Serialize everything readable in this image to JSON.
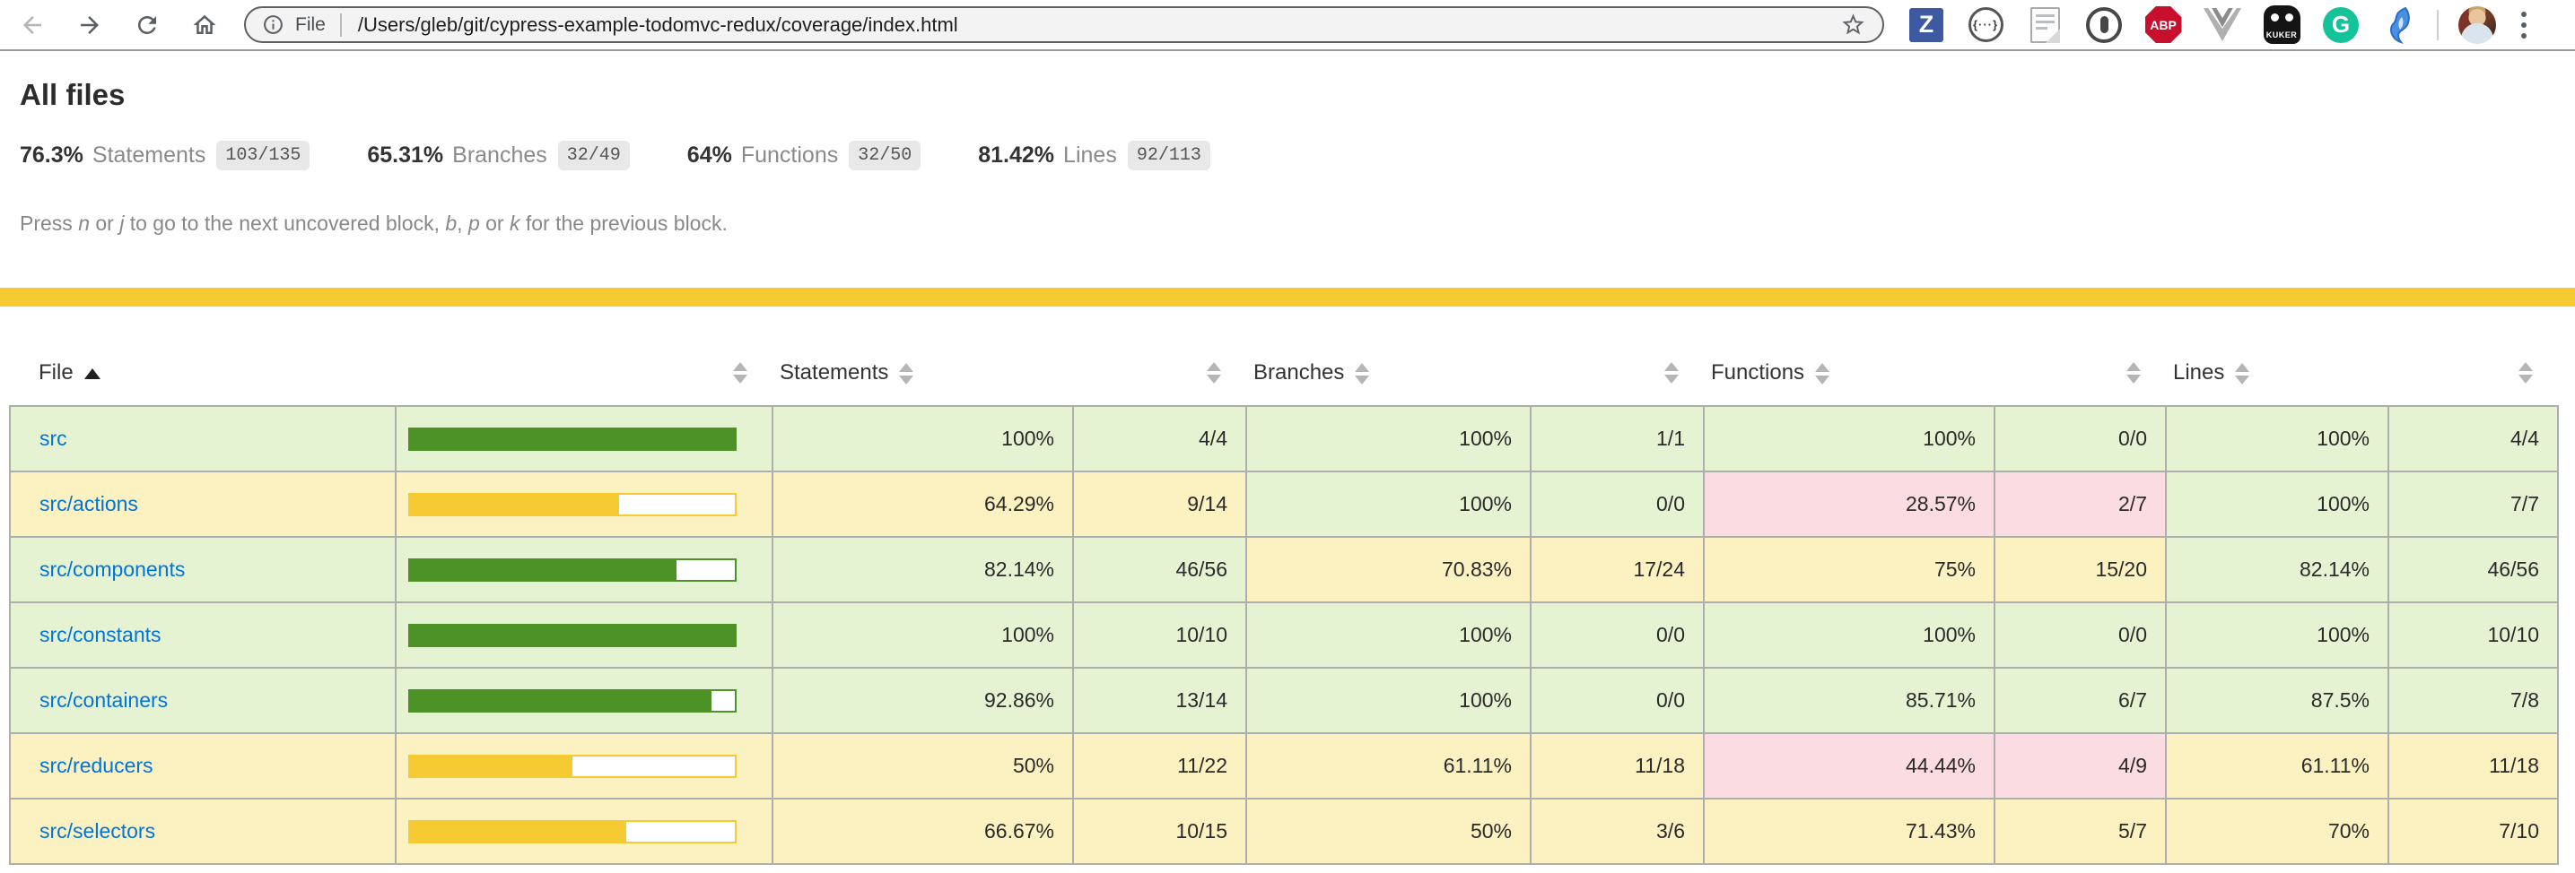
{
  "browser": {
    "address": {
      "scheme_label": "File",
      "path": "/Users/gleb/git/cypress-example-todomvc-redux/coverage/index.html"
    },
    "extensions": {
      "zotero": "Z",
      "json_viewer": "{···}",
      "adblock": "ABP",
      "kuker": "KUKER",
      "grammarly": "G"
    }
  },
  "page": {
    "title": "All files",
    "summary": [
      {
        "pct": "76.3%",
        "label": "Statements",
        "frac": "103/135"
      },
      {
        "pct": "65.31%",
        "label": "Branches",
        "frac": "32/49"
      },
      {
        "pct": "64%",
        "label": "Functions",
        "frac": "32/50"
      },
      {
        "pct": "81.42%",
        "label": "Lines",
        "frac": "92/113"
      }
    ],
    "hint": {
      "t1": "Press ",
      "k1": "n",
      "t2": " or ",
      "k2": "j",
      "t3": " to go to the next uncovered block, ",
      "k3": "b",
      "t4": ", ",
      "k4": "p",
      "t5": " or ",
      "k5": "k",
      "t6": " for the previous block."
    }
  },
  "colors": {
    "high_bg": "#e6f3d3",
    "medium_bg": "#fcf1c1",
    "low_bg": "#fbdce2",
    "green": "#4d9227",
    "yellow": "#f6ca32",
    "status_line": "#f6ca32",
    "link": "#0074d9"
  },
  "table": {
    "headers": {
      "file": "File",
      "statements": "Statements",
      "branches": "Branches",
      "functions": "Functions",
      "lines": "Lines"
    },
    "rows": [
      {
        "file": "src",
        "bar_pct": 100,
        "level": "high",
        "statements": {
          "pct": "100%",
          "frac": "4/4"
        },
        "branches": {
          "pct": "100%",
          "frac": "1/1"
        },
        "functions": {
          "pct": "100%",
          "frac": "0/0"
        },
        "lines": {
          "pct": "100%",
          "frac": "4/4"
        }
      },
      {
        "file": "src/actions",
        "bar_pct": 64.29,
        "level": "medium",
        "statements": {
          "pct": "64.29%",
          "frac": "9/14"
        },
        "branches": {
          "pct": "100%",
          "frac": "0/0"
        },
        "functions": {
          "pct": "28.57%",
          "frac": "2/7"
        },
        "lines": {
          "pct": "100%",
          "frac": "7/7"
        }
      },
      {
        "file": "src/components",
        "bar_pct": 82.14,
        "level": "high",
        "statements": {
          "pct": "82.14%",
          "frac": "46/56"
        },
        "branches": {
          "pct": "70.83%",
          "frac": "17/24"
        },
        "functions": {
          "pct": "75%",
          "frac": "15/20"
        },
        "lines": {
          "pct": "82.14%",
          "frac": "46/56"
        }
      },
      {
        "file": "src/constants",
        "bar_pct": 100,
        "level": "high",
        "statements": {
          "pct": "100%",
          "frac": "10/10"
        },
        "branches": {
          "pct": "100%",
          "frac": "0/0"
        },
        "functions": {
          "pct": "100%",
          "frac": "0/0"
        },
        "lines": {
          "pct": "100%",
          "frac": "10/10"
        }
      },
      {
        "file": "src/containers",
        "bar_pct": 92.86,
        "level": "high",
        "statements": {
          "pct": "92.86%",
          "frac": "13/14"
        },
        "branches": {
          "pct": "100%",
          "frac": "0/0"
        },
        "functions": {
          "pct": "85.71%",
          "frac": "6/7"
        },
        "lines": {
          "pct": "87.5%",
          "frac": "7/8"
        }
      },
      {
        "file": "src/reducers",
        "bar_pct": 50,
        "level": "medium",
        "statements": {
          "pct": "50%",
          "frac": "11/22"
        },
        "branches": {
          "pct": "61.11%",
          "frac": "11/18"
        },
        "functions": {
          "pct": "44.44%",
          "frac": "4/9"
        },
        "lines": {
          "pct": "61.11%",
          "frac": "11/18"
        }
      },
      {
        "file": "src/selectors",
        "bar_pct": 66.67,
        "level": "medium",
        "statements": {
          "pct": "66.67%",
          "frac": "10/15"
        },
        "branches": {
          "pct": "50%",
          "frac": "3/6"
        },
        "functions": {
          "pct": "71.43%",
          "frac": "5/7"
        },
        "lines": {
          "pct": "70%",
          "frac": "7/10"
        }
      }
    ]
  }
}
